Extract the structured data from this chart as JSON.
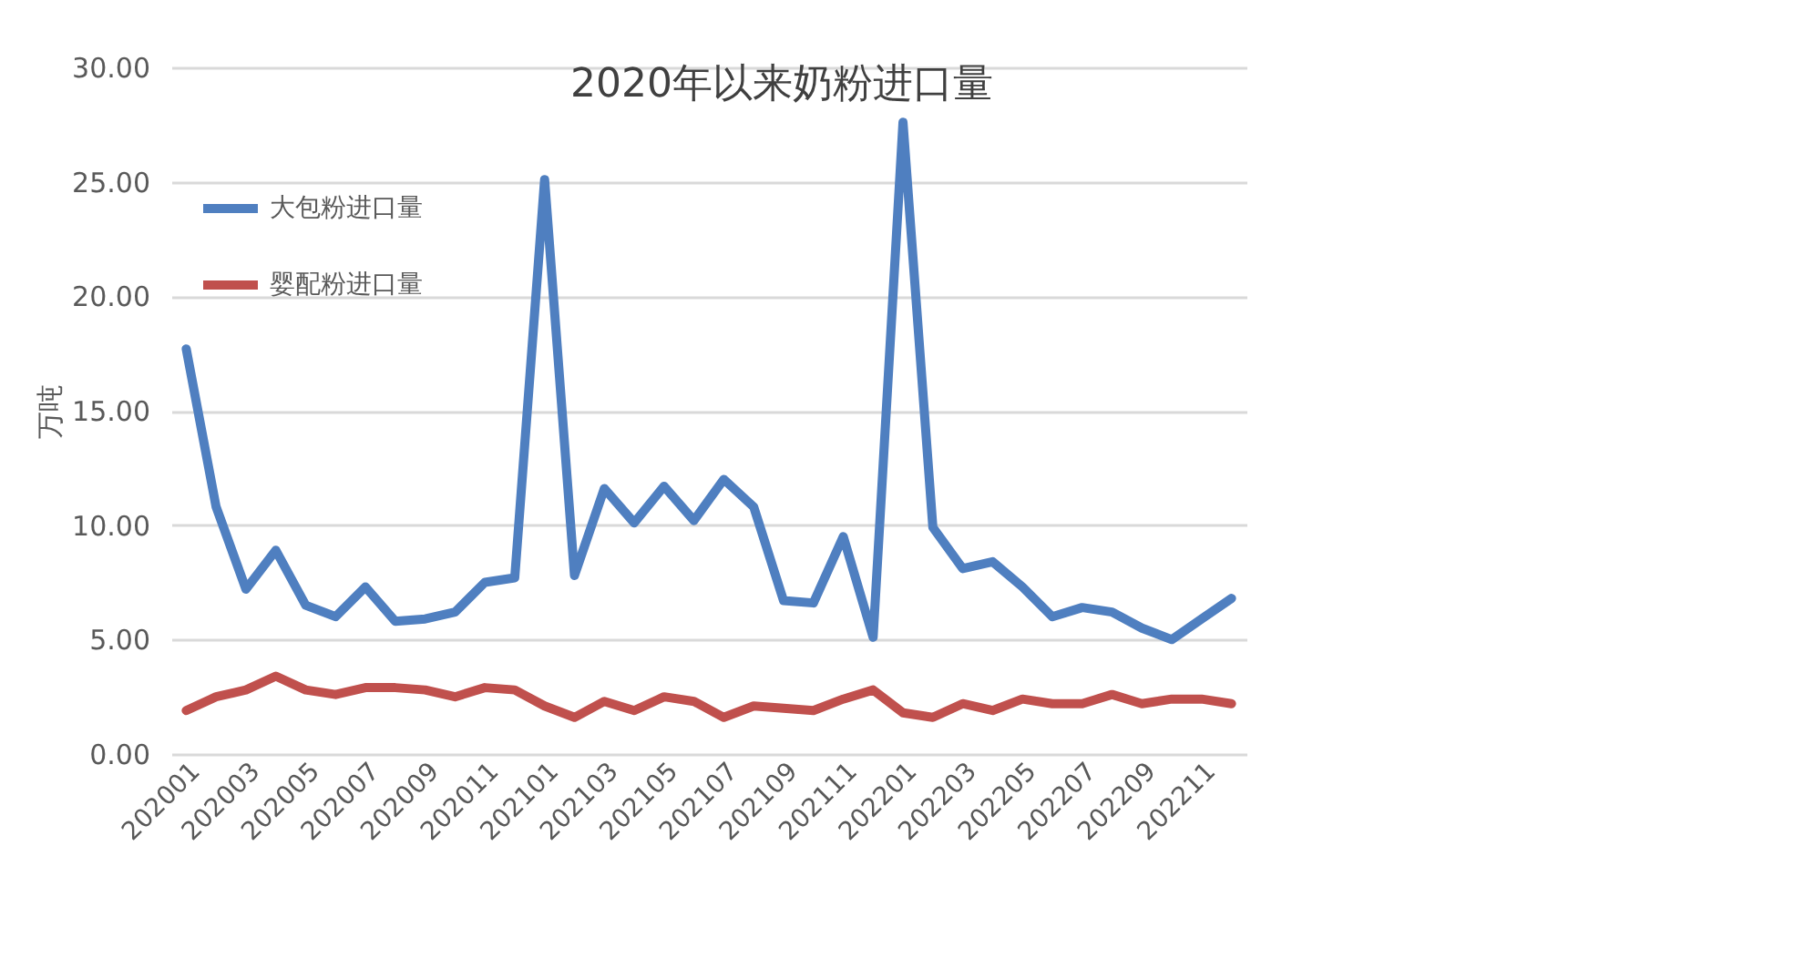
{
  "chart_data": {
    "type": "line",
    "title": "2020年以来奶粉进口量",
    "ylabel": "万吨",
    "categories": [
      "202001",
      null,
      "202003",
      null,
      "202005",
      null,
      "202007",
      null,
      "202009",
      null,
      "202011",
      null,
      "202101",
      null,
      "202103",
      null,
      "202105",
      null,
      "202107",
      null,
      "202109",
      null,
      "202111",
      null,
      "202201",
      null,
      "202203",
      null,
      "202205",
      null,
      "202207",
      null,
      "202209",
      null,
      "202211",
      null
    ],
    "series": [
      {
        "name": "大包粉进口量",
        "color": "#4f7fc0",
        "values": [
          17.7,
          10.8,
          7.2,
          8.9,
          6.5,
          6.0,
          7.3,
          5.8,
          5.9,
          6.2,
          7.5,
          7.7,
          25.1,
          7.8,
          11.6,
          10.1,
          11.7,
          10.2,
          12.0,
          10.8,
          6.7,
          6.6,
          9.5,
          5.1,
          27.6,
          9.9,
          8.1,
          8.4,
          7.3,
          6.0,
          6.4,
          6.2,
          5.5,
          5.0,
          5.9,
          6.8
        ]
      },
      {
        "name": "婴配粉进口量",
        "color": "#c0504d",
        "values": [
          1.9,
          2.5,
          2.8,
          3.4,
          2.8,
          2.6,
          2.9,
          2.9,
          2.8,
          2.5,
          2.9,
          2.8,
          2.1,
          1.6,
          2.3,
          1.9,
          2.5,
          2.3,
          1.6,
          2.1,
          2.0,
          1.9,
          2.4,
          2.8,
          1.8,
          1.6,
          2.2,
          1.9,
          2.4,
          2.2,
          2.2,
          2.6,
          2.2,
          2.4,
          2.4,
          2.2
        ]
      }
    ],
    "ylim": [
      0,
      30
    ],
    "yticks": [
      {
        "value": 0,
        "label": "0.00"
      },
      {
        "value": 5,
        "label": "5.00"
      },
      {
        "value": 10,
        "label": "10.00"
      },
      {
        "value": 15,
        "label": "15.00"
      },
      {
        "value": 20,
        "label": "20.00"
      },
      {
        "value": 25,
        "label": "25.00"
      },
      {
        "value": 30,
        "label": "30.00"
      }
    ],
    "grid": "y",
    "legend": "top left",
    "marker": "none",
    "line_style": "solid"
  }
}
